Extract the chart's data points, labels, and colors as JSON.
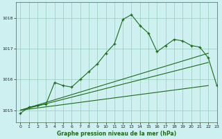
{
  "title": "Graphe pression niveau de la mer (hPa)",
  "bg_color": "#cff0f0",
  "grid_color": "#99ccbb",
  "line_color": "#1a6b1a",
  "xlim": [
    -0.5,
    23
  ],
  "ylim": [
    1014.6,
    1018.5
  ],
  "yticks": [
    1015,
    1016,
    1017,
    1018
  ],
  "xticks": [
    0,
    1,
    2,
    3,
    4,
    5,
    6,
    7,
    8,
    9,
    10,
    11,
    12,
    13,
    14,
    15,
    16,
    17,
    18,
    19,
    20,
    21,
    22,
    23
  ],
  "series1": [
    1014.9,
    1015.1,
    1015.15,
    1015.2,
    1015.9,
    1015.8,
    1015.75,
    1016.0,
    1016.25,
    1016.5,
    1016.85,
    1017.15,
    1017.95,
    1018.1,
    1017.75,
    1017.5,
    1016.9,
    1017.1,
    1017.3,
    1017.25,
    1017.1,
    1017.05,
    1016.7,
    1015.8
  ],
  "series2_x": [
    0,
    22
  ],
  "series2_y": [
    1015.0,
    1015.8
  ],
  "series3_x": [
    0,
    22
  ],
  "series3_y": [
    1015.0,
    1016.55
  ],
  "series4_x": [
    0,
    22
  ],
  "series4_y": [
    1015.0,
    1016.85
  ]
}
